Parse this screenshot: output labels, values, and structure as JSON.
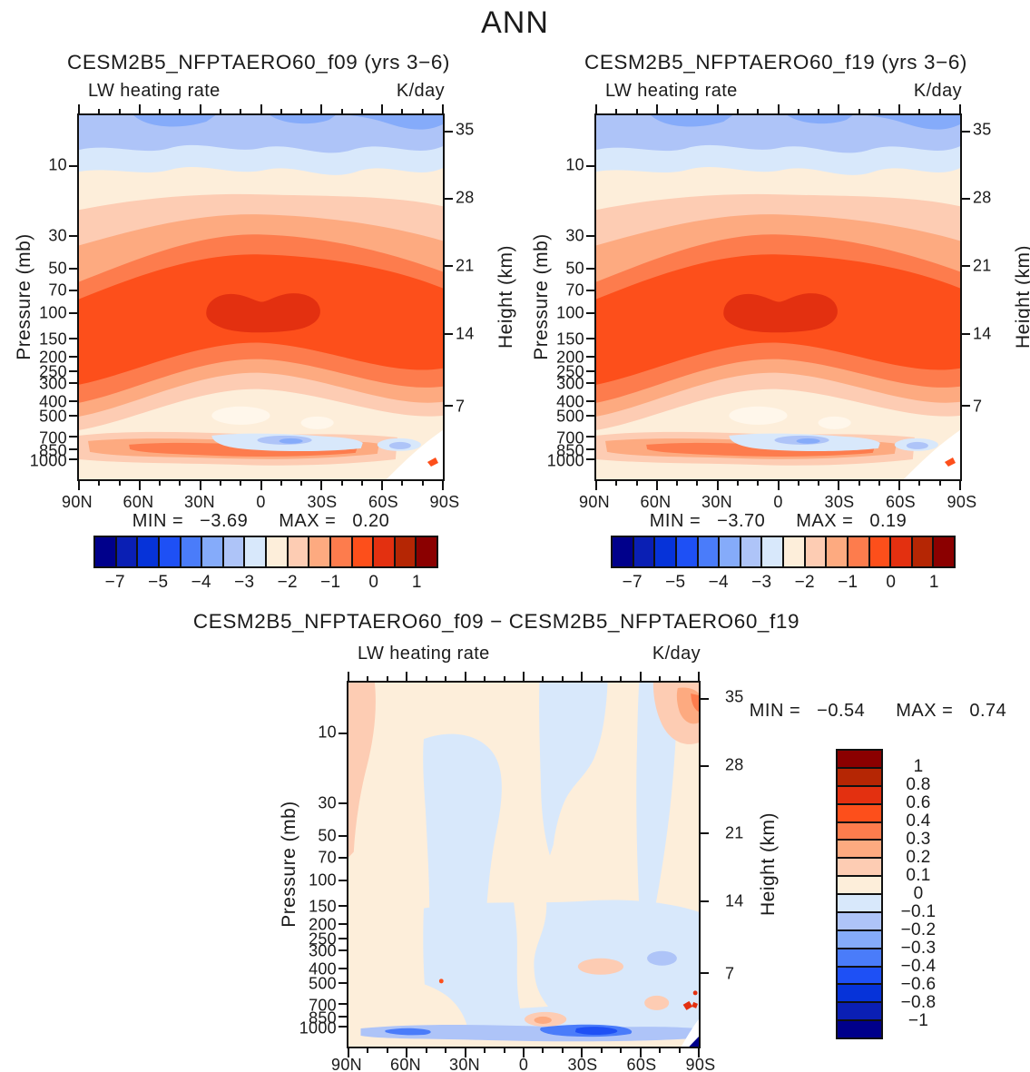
{
  "page_title": "ANN",
  "palette": [
    "#00008B",
    "#0A1FB4",
    "#0633D9",
    "#1E50F5",
    "#4A7CFA",
    "#85ABFA",
    "#AEC4F8",
    "#D8E8FB",
    "#FDEEDA",
    "#FDCCB3",
    "#FDAA80",
    "#FD7C4D",
    "#FD4F1B",
    "#E33010",
    "#B52604",
    "#8B0000"
  ],
  "extra_colors": {
    "white": "#FFFFFF",
    "pale_spot": "#FFF7EB",
    "axis": "#111111",
    "text": "#1B1B1B"
  },
  "panels": {
    "f09": {
      "title": "CESM2B5_NFPTAERO60_f09 (yrs 3−6)",
      "left_label": "LW heating rate",
      "right_label": "K/day",
      "min_label": "MIN =",
      "min_value": "−3.69",
      "max_label": "MAX =",
      "max_value": "0.20"
    },
    "f19": {
      "title": "CESM2B5_NFPTAERO60_f19 (yrs 3−6)",
      "left_label": "LW heating rate",
      "right_label": "K/day",
      "min_label": "MIN =",
      "min_value": "−3.70",
      "max_label": "MAX =",
      "max_value": "0.19"
    },
    "diff": {
      "title": "CESM2B5_NFPTAERO60_f09 − CESM2B5_NFPTAERO60_f19",
      "left_label": "LW heating rate",
      "right_label": "K/day",
      "min_label": "MIN =",
      "min_value": "−0.54",
      "max_label": "MAX =",
      "max_value": "0.74"
    }
  },
  "axes": {
    "pressure_label": "Pressure (mb)",
    "height_label": "Height (km)",
    "pressure_ticks": [
      {
        "label": "10",
        "pct": 14.07
      },
      {
        "label": "30",
        "pct": 33.28
      },
      {
        "label": "50",
        "pct": 42.26
      },
      {
        "label": "70",
        "pct": 48.07
      },
      {
        "label": "100",
        "pct": 54.32
      },
      {
        "label": "150",
        "pct": 61.41
      },
      {
        "label": "200",
        "pct": 66.44
      },
      {
        "label": "250",
        "pct": 70.35
      },
      {
        "label": "300",
        "pct": 73.53
      },
      {
        "label": "400",
        "pct": 78.55
      },
      {
        "label": "500",
        "pct": 82.47
      },
      {
        "label": "700",
        "pct": 88.35
      },
      {
        "label": "850",
        "pct": 91.73
      },
      {
        "label": "1000",
        "pct": 94.57
      }
    ],
    "height_ticks": [
      {
        "label": "35",
        "pct": 4.44
      },
      {
        "label": "28",
        "pct": 22.96
      },
      {
        "label": "21",
        "pct": 41.48
      },
      {
        "label": "14",
        "pct": 60.0
      },
      {
        "label": "7",
        "pct": 79.75
      }
    ],
    "lat_ticks": [
      {
        "label": "90N",
        "pct": 0
      },
      {
        "label": "60N",
        "pct": 16.67
      },
      {
        "label": "30N",
        "pct": 33.33
      },
      {
        "label": "0",
        "pct": 50
      },
      {
        "label": "30S",
        "pct": 66.67
      },
      {
        "label": "60S",
        "pct": 83.33
      },
      {
        "label": "90S",
        "pct": 100
      }
    ]
  },
  "colorbar_main": {
    "labels": [
      {
        "text": "−7",
        "pct": 6.25
      },
      {
        "text": "−5",
        "pct": 18.75
      },
      {
        "text": "−4",
        "pct": 31.25
      },
      {
        "text": "−3",
        "pct": 43.75
      },
      {
        "text": "−2",
        "pct": 56.25
      },
      {
        "text": "−1",
        "pct": 68.75
      },
      {
        "text": "0",
        "pct": 81.25
      },
      {
        "text": "1",
        "pct": 93.75
      }
    ]
  },
  "colorbar_diff": {
    "labels": [
      {
        "text": "1",
        "pct": 6.25
      },
      {
        "text": "0.8",
        "pct": 12.5
      },
      {
        "text": "0.6",
        "pct": 18.75
      },
      {
        "text": "0.4",
        "pct": 25
      },
      {
        "text": "0.3",
        "pct": 31.25
      },
      {
        "text": "0.2",
        "pct": 37.5
      },
      {
        "text": "0.1",
        "pct": 43.75
      },
      {
        "text": "0",
        "pct": 50
      },
      {
        "text": "−0.1",
        "pct": 56.25
      },
      {
        "text": "−0.2",
        "pct": 62.5
      },
      {
        "text": "−0.3",
        "pct": 68.75
      },
      {
        "text": "−0.4",
        "pct": 75
      },
      {
        "text": "−0.6",
        "pct": 81.25
      },
      {
        "text": "−0.8",
        "pct": 87.5
      },
      {
        "text": "−1",
        "pct": 93.75
      }
    ]
  },
  "chart_data": [
    {
      "type": "contour",
      "panel": "top-left",
      "title": "CESM2B5_NFPTAERO60_f09 (yrs 3−6)",
      "variable": "LW heating rate",
      "units": "K/day",
      "xlabel": "latitude",
      "x_ticks": [
        "90N",
        "60N",
        "30N",
        "0",
        "30S",
        "60S",
        "90S"
      ],
      "ylabel_left": "Pressure (mb)",
      "y_ticks_pressure": [
        10,
        30,
        50,
        70,
        100,
        150,
        200,
        250,
        300,
        400,
        500,
        700,
        850,
        1000
      ],
      "y_scale": "log",
      "ylabel_right": "Height (km)",
      "y_ticks_height": [
        35,
        28,
        21,
        14,
        7
      ],
      "min": -3.69,
      "max": 0.2,
      "contour_levels": [
        -7,
        -6,
        -5,
        -4.5,
        -4,
        -3.5,
        -3,
        -2.5,
        -2,
        -1.5,
        -1,
        -0.5,
        0,
        0.5,
        1
      ],
      "labeled_colorbar_levels": [
        -7,
        -5,
        -4,
        -3,
        -2,
        -1,
        0,
        1
      ],
      "features": "Blue band of strong LW cooling (−4 to −3 K/day) at plot top near 35 km; warm-colored cooling minimum below, with dark red core (0 to 0.5 K/day) at 70−100 mb spanning ~30N−30S; moderate cooling (−2 to −3) in mid troposphere; thin enhanced-cooling blue patches near 850 mb around the equator and 60S; white wedge at 90S surface corner"
    },
    {
      "type": "contour",
      "panel": "top-right",
      "title": "CESM2B5_NFPTAERO60_f19 (yrs 3−6)",
      "variable": "LW heating rate",
      "units": "K/day",
      "xlabel": "latitude",
      "x_ticks": [
        "90N",
        "60N",
        "30N",
        "0",
        "30S",
        "60S",
        "90S"
      ],
      "ylabel_left": "Pressure (mb)",
      "y_ticks_pressure": [
        10,
        30,
        50,
        70,
        100,
        150,
        200,
        250,
        300,
        400,
        500,
        700,
        850,
        1000
      ],
      "y_scale": "log",
      "ylabel_right": "Height (km)",
      "y_ticks_height": [
        35,
        28,
        21,
        14,
        7
      ],
      "min": -3.7,
      "max": 0.19,
      "contour_levels": [
        -7,
        -6,
        -5,
        -4.5,
        -4,
        -3.5,
        -3,
        -2.5,
        -2,
        -1.5,
        -1,
        -0.5,
        0,
        0.5,
        1
      ],
      "labeled_colorbar_levels": [
        -7,
        -5,
        -4,
        -3,
        -2,
        -1,
        0,
        1
      ],
      "features": "Nearly identical pattern to the f09 panel: strong cooling aloft, near-zero dark red core at 70−100 mb in the tropics, blue boundary-layer cooling patches near 850 mb"
    },
    {
      "type": "contour",
      "panel": "bottom-difference",
      "title": "CESM2B5_NFPTAERO60_f09 − CESM2B5_NFPTAERO60_f19",
      "variable": "LW heating rate",
      "units": "K/day",
      "xlabel": "latitude",
      "x_ticks": [
        "90N",
        "60N",
        "30N",
        "0",
        "30S",
        "60S",
        "90S"
      ],
      "ylabel_left": "Pressure (mb)",
      "y_ticks_pressure": [
        10,
        30,
        50,
        70,
        100,
        150,
        200,
        250,
        300,
        400,
        500,
        700,
        850,
        1000
      ],
      "y_scale": "log",
      "ylabel_right": "Height (km)",
      "y_ticks_height": [
        35,
        28,
        21,
        14,
        7
      ],
      "min": -0.54,
      "max": 0.74,
      "contour_levels": [
        -1,
        -0.8,
        -0.6,
        -0.4,
        -0.3,
        -0.2,
        -0.1,
        0,
        0.1,
        0.2,
        0.3,
        0.4,
        0.6,
        0.8,
        1
      ],
      "features": "Mostly near-zero differences (pale ±0.1 bands); light peach positive patches at the 90N top edge and 90S top corner (0.1−0.4); pale blue weakly negative regions through the troposphere; stronger blue negative streak (−0.4 to −0.8) near 850−1000 mb around 20−40S; tiny red and navy specks at the 90S surface corner"
    }
  ]
}
